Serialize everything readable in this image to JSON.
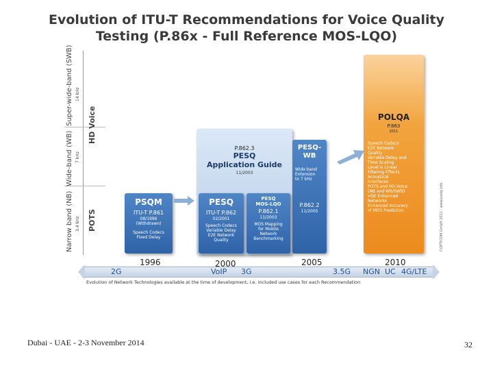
{
  "slide": {
    "title_line1": "Evolution of ITU-T Recommendations for Voice Quality",
    "title_line2": "Testing (P.86x - Full Reference MOS-LQO)",
    "footer_left": "Dubai - UAE - 2-3 November 2014",
    "page_number": "32"
  },
  "diagram": {
    "bands": {
      "swb": {
        "label": "Super-wide-band (SWB)",
        "freq": "14 kHz"
      },
      "wb": {
        "label": "Wide-band (WB)",
        "freq": "7 kHz"
      },
      "nb": {
        "label": "Narrow band (NB)",
        "freq": "3.4 kHz"
      }
    },
    "side_labels": {
      "hd": "HD Voice",
      "pots": "POTS"
    },
    "copyright": "©OPTICOM GmbH 2011 - www.pesq.info",
    "boxes": {
      "psqm": {
        "title": "PSQM",
        "rec": "ITU-T P.861",
        "date": "08/1996",
        "status": "(Withdrawn)",
        "desc": "Speech Codecs\nFixed Delay"
      },
      "pesq": {
        "title": "PESQ",
        "rec": "ITU-T P.862",
        "date": "02/2001",
        "desc": "Speech Codecs\nVariable Delay\nE2E Network\nQuality"
      },
      "pesq_app": {
        "rec": "P.862.3",
        "title1": "PESQ",
        "title2": "Application Guide",
        "date": "11/2003"
      },
      "pesq_mos": {
        "title": "PESQ\nMOS-LQO",
        "rec": "P.862.1",
        "date": "11/2003",
        "desc": "MOS Mapping\nfor Mobile\nNetwork\nBenchmarking"
      },
      "pesq_wb": {
        "title": "PESQ-\nWB",
        "desc": "Wide band\nExtension\nto 7 kHz",
        "rec": "P.862.2",
        "date": "11/2005"
      },
      "polqa": {
        "title": "POLQA",
        "rec": "P.863",
        "date": "2011",
        "items": "Speech Codecs\nE2E Network\nQuality\nVariable Delay and\nTime Scaling\nLevel & Linear\nFiltering Effects\nAcoustical\nInterfaces\nPOTS and HD Voice\n(NB and WB/SWB)\nVQE Enhanced\nNetworks\nEnhanced Accuracy\nof MOS Prediction"
      }
    },
    "years": [
      "1996",
      "2000",
      "2005",
      "2010"
    ],
    "tech": [
      "2G",
      "VoIP",
      "3G",
      "3.5G",
      "NGN",
      "UC",
      "4G/LTE"
    ],
    "evolution_caption": "Evolution of Network Technologies available at the time of development, i.e. included use cases for each Recommendation"
  }
}
